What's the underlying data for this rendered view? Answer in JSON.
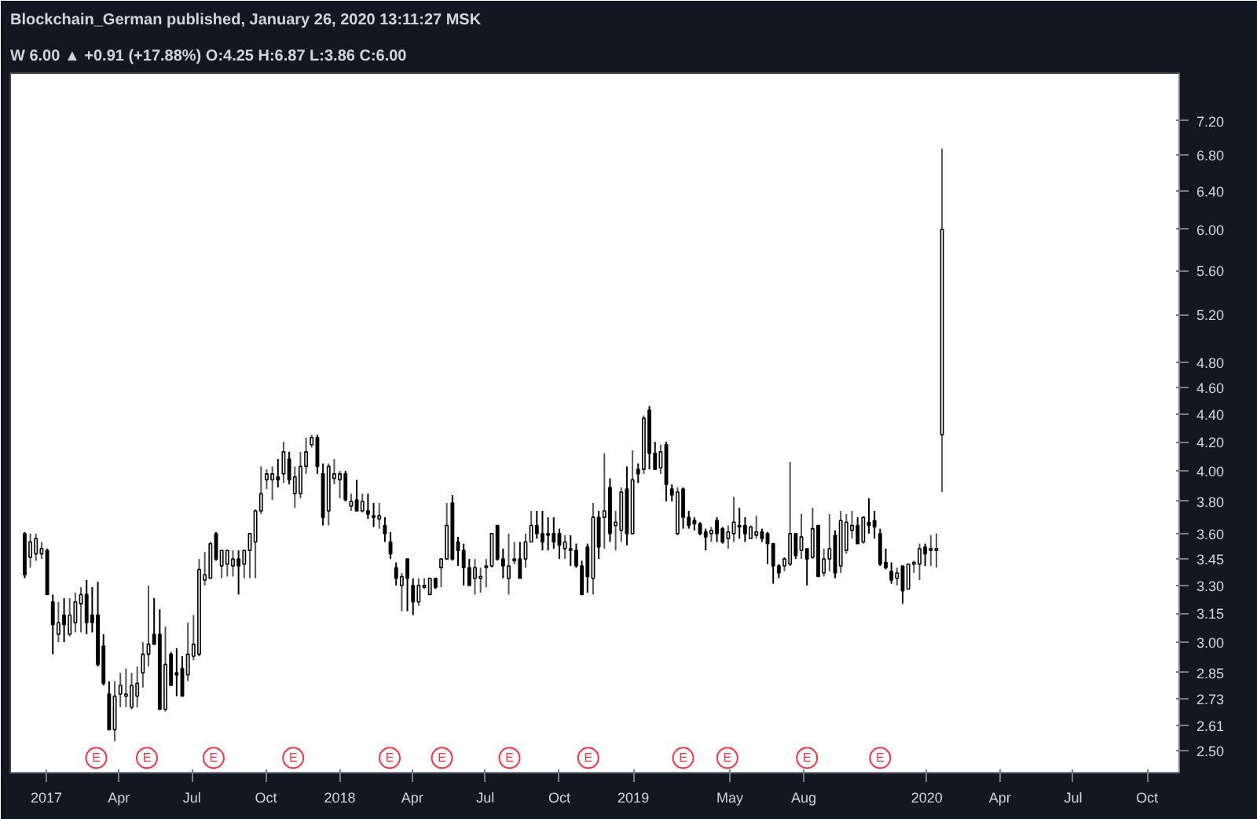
{
  "chart_data": {
    "type": "candlestick",
    "log": true,
    "grid": false,
    "annotations": [
      "Blockchain_German published, January 26, 2020 13:11:27 MSK",
      "W 6.00 ▲ +0.91 (+17.88%) O:4.25 H:6.87 L:3.86 C:6.00",
      {
        "text": "E",
        "x": "2017-03-04",
        "y": 2.47
      },
      {
        "text": "E",
        "x": "2017-05-06",
        "y": 2.47
      },
      {
        "text": "E",
        "x": "2017-07-28",
        "y": 2.47
      },
      {
        "text": "E",
        "x": "2017-11-04",
        "y": 2.47
      },
      {
        "text": "E",
        "x": "2018-03-04",
        "y": 2.47
      },
      {
        "text": "E",
        "x": "2018-05-08",
        "y": 2.47
      },
      {
        "text": "E",
        "x": "2018-07-31",
        "y": 2.47
      },
      {
        "text": "E",
        "x": "2018-11-06",
        "y": 2.47
      },
      {
        "text": "E",
        "x": "2019-03-04",
        "y": 2.47
      },
      {
        "text": "E",
        "x": "2019-04-28",
        "y": 2.47
      },
      {
        "text": "E",
        "x": "2019-08-05",
        "y": 2.47
      },
      {
        "text": "E",
        "x": "2019-11-04",
        "y": 2.47
      }
    ],
    "xlim": [
      "2016-11-17",
      "2020-11-10"
    ],
    "xticks": [
      {
        "value": "2017-01-01",
        "label": "2017"
      },
      {
        "value": "2017-04-01",
        "label": "Apr"
      },
      {
        "value": "2017-07-01",
        "label": "Jul"
      },
      {
        "value": "2017-10-01",
        "label": "Oct"
      },
      {
        "value": "2018-01-01",
        "label": "2018"
      },
      {
        "value": "2018-04-01",
        "label": "Apr"
      },
      {
        "value": "2018-07-01",
        "label": "Jul"
      },
      {
        "value": "2018-10-01",
        "label": "Oct"
      },
      {
        "value": "2019-01-01",
        "label": "2019"
      },
      {
        "value": "2019-05-01",
        "label": "May"
      },
      {
        "value": "2019-08-01",
        "label": "Aug"
      },
      {
        "value": "2020-01-01",
        "label": "2020"
      },
      {
        "value": "2020-04-01",
        "label": "Apr"
      },
      {
        "value": "2020-07-01",
        "label": "Jul"
      },
      {
        "value": "2020-10-01",
        "label": "Oct"
      }
    ],
    "ylim": [
      2.41,
      7.8
    ],
    "yticks": [
      {
        "value": 2.5,
        "label": "2.50"
      },
      {
        "value": 2.61,
        "label": "2.61"
      },
      {
        "value": 2.73,
        "label": "2.73"
      },
      {
        "value": 2.85,
        "label": "2.85"
      },
      {
        "value": 3.0,
        "label": "3.00"
      },
      {
        "value": 3.15,
        "label": "3.15"
      },
      {
        "value": 3.3,
        "label": "3.30"
      },
      {
        "value": 3.45,
        "label": "3.45"
      },
      {
        "value": 3.6,
        "label": "3.60"
      },
      {
        "value": 3.8,
        "label": "3.80"
      },
      {
        "value": 4.0,
        "label": "4.00"
      },
      {
        "value": 4.2,
        "label": "4.20"
      },
      {
        "value": 4.4,
        "label": "4.40"
      },
      {
        "value": 4.6,
        "label": "4.60"
      },
      {
        "value": 4.8,
        "label": "4.80"
      },
      {
        "value": 5.2,
        "label": "5.20"
      },
      {
        "value": 5.6,
        "label": "5.60"
      },
      {
        "value": 6.0,
        "label": "6.00"
      },
      {
        "value": 6.4,
        "label": "6.40"
      },
      {
        "value": 6.8,
        "label": "6.80"
      },
      {
        "value": 7.2,
        "label": "7.20"
      }
    ],
    "x": [
      "2016-12-05",
      "2016-12-12",
      "2016-12-19",
      "2016-12-26",
      "2017-01-02",
      "2017-01-09",
      "2017-01-16",
      "2017-01-23",
      "2017-01-30",
      "2017-02-06",
      "2017-02-13",
      "2017-02-20",
      "2017-02-27",
      "2017-03-06",
      "2017-03-13",
      "2017-03-20",
      "2017-03-27",
      "2017-04-03",
      "2017-04-10",
      "2017-04-17",
      "2017-04-24",
      "2017-05-01",
      "2017-05-08",
      "2017-05-15",
      "2017-05-22",
      "2017-05-29",
      "2017-06-05",
      "2017-06-12",
      "2017-06-19",
      "2017-06-26",
      "2017-07-03",
      "2017-07-10",
      "2017-07-17",
      "2017-07-24",
      "2017-07-31",
      "2017-08-07",
      "2017-08-14",
      "2017-08-21",
      "2017-08-28",
      "2017-09-04",
      "2017-09-11",
      "2017-09-18",
      "2017-09-25",
      "2017-10-02",
      "2017-10-09",
      "2017-10-16",
      "2017-10-23",
      "2017-10-30",
      "2017-11-06",
      "2017-11-13",
      "2017-11-20",
      "2017-11-27",
      "2017-12-04",
      "2017-12-11",
      "2017-12-18",
      "2017-12-25",
      "2018-01-01",
      "2018-01-08",
      "2018-01-15",
      "2018-01-22",
      "2018-01-29",
      "2018-02-05",
      "2018-02-12",
      "2018-02-19",
      "2018-02-26",
      "2018-03-05",
      "2018-03-12",
      "2018-03-19",
      "2018-03-26",
      "2018-04-02",
      "2018-04-09",
      "2018-04-16",
      "2018-04-23",
      "2018-04-30",
      "2018-05-07",
      "2018-05-14",
      "2018-05-21",
      "2018-05-28",
      "2018-06-04",
      "2018-06-11",
      "2018-06-18",
      "2018-06-25",
      "2018-07-02",
      "2018-07-09",
      "2018-07-16",
      "2018-07-23",
      "2018-07-30",
      "2018-08-06",
      "2018-08-13",
      "2018-08-20",
      "2018-08-27",
      "2018-09-03",
      "2018-09-10",
      "2018-09-17",
      "2018-09-24",
      "2018-10-01",
      "2018-10-08",
      "2018-10-15",
      "2018-10-22",
      "2018-10-29",
      "2018-11-05",
      "2018-11-12",
      "2018-11-19",
      "2018-11-26",
      "2018-12-03",
      "2018-12-10",
      "2018-12-17",
      "2018-12-24",
      "2018-12-31",
      "2019-01-07",
      "2019-01-14",
      "2019-01-21",
      "2019-01-28",
      "2019-02-04",
      "2019-02-11",
      "2019-02-18",
      "2019-02-25",
      "2019-03-04",
      "2019-03-11",
      "2019-03-18",
      "2019-03-25",
      "2019-04-01",
      "2019-04-08",
      "2019-04-15",
      "2019-04-22",
      "2019-04-29",
      "2019-05-06",
      "2019-05-13",
      "2019-05-20",
      "2019-05-27",
      "2019-06-03",
      "2019-06-10",
      "2019-06-17",
      "2019-06-24",
      "2019-07-01",
      "2019-07-08",
      "2019-07-15",
      "2019-07-22",
      "2019-07-29",
      "2019-08-05",
      "2019-08-12",
      "2019-08-19",
      "2019-08-26",
      "2019-09-02",
      "2019-09-09",
      "2019-09-16",
      "2019-09-23",
      "2019-09-30",
      "2019-10-07",
      "2019-10-14",
      "2019-10-21",
      "2019-10-28",
      "2019-11-04",
      "2019-11-11",
      "2019-11-18",
      "2019-11-25",
      "2019-12-02",
      "2019-12-09",
      "2019-12-16",
      "2019-12-23",
      "2019-12-30",
      "2020-01-06",
      "2020-01-13",
      "2020-01-20"
    ],
    "ohlc": [
      [
        3.6,
        3.61,
        3.34,
        3.36
      ],
      [
        3.46,
        3.6,
        3.4,
        3.55
      ],
      [
        3.48,
        3.6,
        3.44,
        3.57
      ],
      [
        3.48,
        3.55,
        3.45,
        3.51
      ],
      [
        3.5,
        3.51,
        3.25,
        3.25
      ],
      [
        3.21,
        3.25,
        2.94,
        3.09
      ],
      [
        3.04,
        3.21,
        3.0,
        3.1
      ],
      [
        3.14,
        3.23,
        3.0,
        3.09
      ],
      [
        3.04,
        3.23,
        3.03,
        3.14
      ],
      [
        3.1,
        3.26,
        3.05,
        3.21
      ],
      [
        3.2,
        3.29,
        3.05,
        3.25
      ],
      [
        3.25,
        3.33,
        3.04,
        3.1
      ],
      [
        3.14,
        3.29,
        3.05,
        3.1
      ],
      [
        3.14,
        3.32,
        2.88,
        2.89
      ],
      [
        2.98,
        3.04,
        2.79,
        2.8
      ],
      [
        2.75,
        2.81,
        2.59,
        2.59
      ],
      [
        2.59,
        2.81,
        2.54,
        2.74
      ],
      [
        2.75,
        2.85,
        2.69,
        2.79
      ],
      [
        2.74,
        2.87,
        2.69,
        2.75
      ],
      [
        2.69,
        2.85,
        2.68,
        2.79
      ],
      [
        2.74,
        2.88,
        2.69,
        2.8
      ],
      [
        2.85,
        3.0,
        2.78,
        2.94
      ],
      [
        2.94,
        3.3,
        2.88,
        2.99
      ],
      [
        3.04,
        3.23,
        2.99,
        2.99
      ],
      [
        3.04,
        3.17,
        2.68,
        2.68
      ],
      [
        2.68,
        3.08,
        2.67,
        2.89
      ],
      [
        2.94,
        2.95,
        2.79,
        2.79
      ],
      [
        2.85,
        2.97,
        2.74,
        2.84
      ],
      [
        2.87,
        2.93,
        2.74,
        2.74
      ],
      [
        2.84,
        3.1,
        2.81,
        2.94
      ],
      [
        2.93,
        3.14,
        2.91,
        2.99
      ],
      [
        2.94,
        3.45,
        2.93,
        3.39
      ],
      [
        3.33,
        3.49,
        3.3,
        3.36
      ],
      [
        3.34,
        3.55,
        3.34,
        3.54
      ],
      [
        3.6,
        3.61,
        3.44,
        3.45
      ],
      [
        3.41,
        3.5,
        3.34,
        3.5
      ],
      [
        3.42,
        3.5,
        3.35,
        3.5
      ],
      [
        3.41,
        3.5,
        3.35,
        3.45
      ],
      [
        3.45,
        3.5,
        3.25,
        3.41
      ],
      [
        3.42,
        3.5,
        3.34,
        3.5
      ],
      [
        3.5,
        3.6,
        3.34,
        3.6
      ],
      [
        3.55,
        3.75,
        3.34,
        3.74
      ],
      [
        3.74,
        4.03,
        3.72,
        3.85
      ],
      [
        3.94,
        4.01,
        3.88,
        3.98
      ],
      [
        3.94,
        4.03,
        3.81,
        3.98
      ],
      [
        3.96,
        4.08,
        3.89,
        3.94
      ],
      [
        3.98,
        4.2,
        3.92,
        4.13
      ],
      [
        4.08,
        4.13,
        3.91,
        3.94
      ],
      [
        3.85,
        4.03,
        3.76,
        3.96
      ],
      [
        3.85,
        4.13,
        3.82,
        4.03
      ],
      [
        4.03,
        4.23,
        3.98,
        4.13
      ],
      [
        4.18,
        4.25,
        4.16,
        4.23
      ],
      [
        4.23,
        4.25,
        3.98,
        4.03
      ],
      [
        3.98,
        4.05,
        3.65,
        3.7
      ],
      [
        3.74,
        4.05,
        3.65,
        4.03
      ],
      [
        3.95,
        4.08,
        3.91,
        3.98
      ],
      [
        3.94,
        4.0,
        3.82,
        3.98
      ],
      [
        3.98,
        4.0,
        3.8,
        3.81
      ],
      [
        3.77,
        3.85,
        3.74,
        3.8
      ],
      [
        3.81,
        3.94,
        3.74,
        3.74
      ],
      [
        3.74,
        3.85,
        3.73,
        3.8
      ],
      [
        3.74,
        3.85,
        3.69,
        3.72
      ],
      [
        3.71,
        3.79,
        3.64,
        3.7
      ],
      [
        3.69,
        3.79,
        3.63,
        3.71
      ],
      [
        3.65,
        3.7,
        3.55,
        3.6
      ],
      [
        3.55,
        3.61,
        3.45,
        3.48
      ],
      [
        3.4,
        3.43,
        3.3,
        3.34
      ],
      [
        3.3,
        3.37,
        3.16,
        3.35
      ],
      [
        3.45,
        3.45,
        3.16,
        3.34
      ],
      [
        3.3,
        3.34,
        3.14,
        3.21
      ],
      [
        3.21,
        3.34,
        3.19,
        3.3
      ],
      [
        3.29,
        3.34,
        3.28,
        3.3
      ],
      [
        3.25,
        3.34,
        3.25,
        3.34
      ],
      [
        3.34,
        3.34,
        3.28,
        3.29
      ],
      [
        3.4,
        3.45,
        3.29,
        3.45
      ],
      [
        3.45,
        3.79,
        3.45,
        3.65
      ],
      [
        3.79,
        3.84,
        3.44,
        3.45
      ],
      [
        3.55,
        3.58,
        3.41,
        3.5
      ],
      [
        3.5,
        3.54,
        3.3,
        3.4
      ],
      [
        3.4,
        3.45,
        3.3,
        3.3
      ],
      [
        3.34,
        3.45,
        3.25,
        3.4
      ],
      [
        3.34,
        3.4,
        3.26,
        3.35
      ],
      [
        3.4,
        3.45,
        3.29,
        3.41
      ],
      [
        3.41,
        3.6,
        3.4,
        3.6
      ],
      [
        3.65,
        3.65,
        3.44,
        3.45
      ],
      [
        3.45,
        3.51,
        3.34,
        3.41
      ],
      [
        3.34,
        3.6,
        3.25,
        3.41
      ],
      [
        3.44,
        3.55,
        3.42,
        3.45
      ],
      [
        3.45,
        3.55,
        3.34,
        3.34
      ],
      [
        3.45,
        3.6,
        3.4,
        3.55
      ],
      [
        3.55,
        3.74,
        3.55,
        3.65
      ],
      [
        3.65,
        3.74,
        3.57,
        3.6
      ],
      [
        3.6,
        3.74,
        3.5,
        3.55
      ],
      [
        3.6,
        3.7,
        3.5,
        3.59
      ],
      [
        3.6,
        3.7,
        3.51,
        3.55
      ],
      [
        3.6,
        3.63,
        3.45,
        3.53
      ],
      [
        3.51,
        3.59,
        3.45,
        3.55
      ],
      [
        3.51,
        3.59,
        3.41,
        3.5
      ],
      [
        3.5,
        3.54,
        3.4,
        3.41
      ],
      [
        3.41,
        3.44,
        3.25,
        3.25
      ],
      [
        3.52,
        3.54,
        3.26,
        3.35
      ],
      [
        3.34,
        3.79,
        3.25,
        3.7
      ],
      [
        3.7,
        3.74,
        3.45,
        3.52
      ],
      [
        3.7,
        4.12,
        3.51,
        3.74
      ],
      [
        3.89,
        3.95,
        3.55,
        3.6
      ],
      [
        3.65,
        3.74,
        3.5,
        3.67
      ],
      [
        3.62,
        3.89,
        3.55,
        3.86
      ],
      [
        3.88,
        4.03,
        3.53,
        3.6
      ],
      [
        3.6,
        4.14,
        3.6,
        3.94
      ],
      [
        4.01,
        4.05,
        3.92,
        3.98
      ],
      [
        4.01,
        4.39,
        3.98,
        4.37
      ],
      [
        4.43,
        4.46,
        4.01,
        4.12
      ],
      [
        4.12,
        4.2,
        4.01,
        4.01
      ],
      [
        4.02,
        4.18,
        3.98,
        4.13
      ],
      [
        4.18,
        4.2,
        3.8,
        3.91
      ],
      [
        3.88,
        3.91,
        3.8,
        3.84
      ],
      [
        3.6,
        3.89,
        3.59,
        3.86
      ],
      [
        3.88,
        3.89,
        3.63,
        3.7
      ],
      [
        3.7,
        3.74,
        3.63,
        3.65
      ],
      [
        3.68,
        3.7,
        3.62,
        3.66
      ],
      [
        3.66,
        3.67,
        3.59,
        3.6
      ],
      [
        3.61,
        3.63,
        3.5,
        3.58
      ],
      [
        3.6,
        3.64,
        3.55,
        3.62
      ],
      [
        3.68,
        3.7,
        3.55,
        3.6
      ],
      [
        3.63,
        3.64,
        3.54,
        3.55
      ],
      [
        3.57,
        3.65,
        3.51,
        3.61
      ],
      [
        3.6,
        3.83,
        3.55,
        3.67
      ],
      [
        3.65,
        3.76,
        3.57,
        3.64
      ],
      [
        3.65,
        3.7,
        3.55,
        3.6
      ],
      [
        3.57,
        3.65,
        3.57,
        3.64
      ],
      [
        3.59,
        3.71,
        3.57,
        3.61
      ],
      [
        3.61,
        3.63,
        3.55,
        3.57
      ],
      [
        3.6,
        3.61,
        3.42,
        3.54
      ],
      [
        3.54,
        3.54,
        3.31,
        3.41
      ],
      [
        3.41,
        3.42,
        3.34,
        3.37
      ],
      [
        3.41,
        3.46,
        3.38,
        3.45
      ],
      [
        3.42,
        4.06,
        3.41,
        3.6
      ],
      [
        3.6,
        3.6,
        3.45,
        3.47
      ],
      [
        3.5,
        3.72,
        3.45,
        3.58
      ],
      [
        3.51,
        3.51,
        3.3,
        3.45
      ],
      [
        3.46,
        3.76,
        3.45,
        3.63
      ],
      [
        3.65,
        3.65,
        3.35,
        3.35
      ],
      [
        3.37,
        3.51,
        3.35,
        3.45
      ],
      [
        3.45,
        3.72,
        3.38,
        3.51
      ],
      [
        3.59,
        3.62,
        3.34,
        3.37
      ],
      [
        3.41,
        3.74,
        3.37,
        3.68
      ],
      [
        3.5,
        3.72,
        3.48,
        3.67
      ],
      [
        3.62,
        3.74,
        3.57,
        3.65
      ],
      [
        3.65,
        3.7,
        3.54,
        3.54
      ],
      [
        3.55,
        3.7,
        3.54,
        3.7
      ],
      [
        3.67,
        3.82,
        3.6,
        3.65
      ],
      [
        3.68,
        3.74,
        3.57,
        3.64
      ],
      [
        3.6,
        3.63,
        3.41,
        3.42
      ],
      [
        3.43,
        3.51,
        3.39,
        3.4
      ],
      [
        3.38,
        3.43,
        3.31,
        3.33
      ],
      [
        3.34,
        3.4,
        3.3,
        3.37
      ],
      [
        3.41,
        3.41,
        3.2,
        3.27
      ],
      [
        3.28,
        3.42,
        3.28,
        3.42
      ],
      [
        3.42,
        3.44,
        3.37,
        3.43
      ],
      [
        3.42,
        3.54,
        3.33,
        3.51
      ],
      [
        3.52,
        3.54,
        3.41,
        3.48
      ],
      [
        3.5,
        3.59,
        3.41,
        3.51
      ],
      [
        3.5,
        3.6,
        3.4,
        3.51
      ],
      [
        4.25,
        6.87,
        3.86,
        6.0
      ]
    ]
  }
}
